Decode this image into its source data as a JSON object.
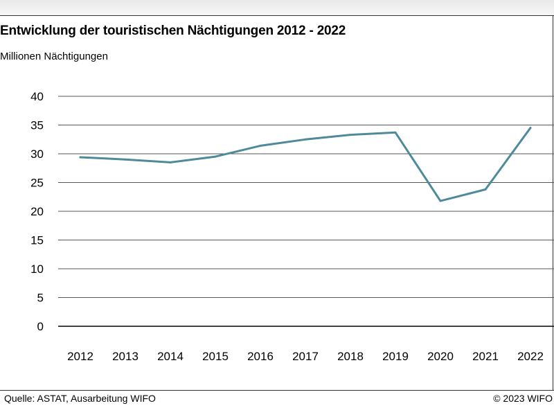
{
  "chart_data": {
    "type": "line",
    "title": "Entwicklung der touristischen Nächtigungen 2012 - 2022",
    "ylabel": "Millionen Nächtigungen",
    "categories": [
      "2012",
      "2013",
      "2014",
      "2015",
      "2016",
      "2017",
      "2018",
      "2019",
      "2020",
      "2021",
      "2022"
    ],
    "series": [
      {
        "values": [
          29.4,
          29.0,
          28.5,
          29.5,
          31.4,
          32.5,
          33.3,
          33.7,
          21.8,
          23.8,
          34.5
        ],
        "color": "#4e8a9a"
      }
    ],
    "ylim": [
      0,
      40
    ],
    "yticks": [
      "0",
      "5",
      "10",
      "15",
      "20",
      "25",
      "30",
      "35",
      "40"
    ],
    "grid": true,
    "legend": "none"
  },
  "footer": {
    "source": "Quelle: ASTAT, Ausarbeitung WIFO",
    "copyright": "© 2023 WIFO"
  }
}
